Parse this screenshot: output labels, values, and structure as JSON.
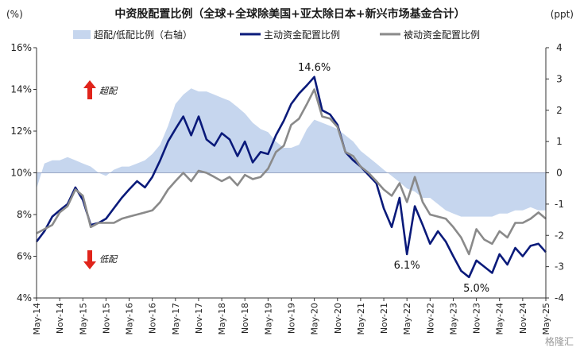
{
  "chart_data": {
    "type": "line",
    "title": "中资股配置比例（全球+全球除美国+亚太除日本+新兴市场基金合计）",
    "left_unit": "(%)",
    "right_unit": "(ppt)",
    "y_left": {
      "min": 4,
      "max": 16,
      "ticks": [
        "4%",
        "6%",
        "8%",
        "10%",
        "12%",
        "14%",
        "16%"
      ]
    },
    "y_right": {
      "min": -4,
      "max": 4,
      "ticks": [
        "-4",
        "-3",
        "-2",
        "-1",
        "0",
        "1",
        "2",
        "3",
        "4"
      ]
    },
    "x_ticks": [
      "May-14",
      "Nov-14",
      "May-15",
      "Nov-15",
      "May-16",
      "Nov-16",
      "May-17",
      "Nov-17",
      "May-18",
      "Nov-18",
      "May-19",
      "Nov-19",
      "May-20",
      "Nov-20",
      "May-21",
      "Nov-21",
      "May-22",
      "Nov-22",
      "May-23",
      "Nov-23",
      "May-24",
      "Nov-24",
      "May-25"
    ],
    "x_range": [
      2014.33,
      2025.33
    ],
    "legend": {
      "position": "top"
    },
    "series": [
      {
        "name": "超配/低配比例（右轴）",
        "type": "area",
        "axis": "right",
        "color": "#c6d6ee",
        "x": [
          2014.33,
          2014.5,
          2014.67,
          2014.83,
          2015.0,
          2015.17,
          2015.33,
          2015.5,
          2015.67,
          2015.83,
          2016.0,
          2016.17,
          2016.33,
          2016.5,
          2016.67,
          2016.83,
          2017.0,
          2017.17,
          2017.33,
          2017.5,
          2017.67,
          2017.83,
          2018.0,
          2018.17,
          2018.33,
          2018.5,
          2018.67,
          2018.83,
          2019.0,
          2019.17,
          2019.33,
          2019.5,
          2019.67,
          2019.83,
          2020.0,
          2020.17,
          2020.33,
          2020.5,
          2020.67,
          2020.83,
          2021.0,
          2021.17,
          2021.33,
          2021.5,
          2021.67,
          2021.83,
          2022.0,
          2022.17,
          2022.33,
          2022.5,
          2022.67,
          2022.83,
          2023.0,
          2023.17,
          2023.33,
          2023.5,
          2023.67,
          2023.83,
          2024.0,
          2024.17,
          2024.33,
          2024.5,
          2024.67,
          2024.83,
          2025.0,
          2025.17,
          2025.33
        ],
        "values": [
          -0.5,
          0.3,
          0.4,
          0.4,
          0.5,
          0.4,
          0.3,
          0.2,
          0.0,
          -0.1,
          0.1,
          0.2,
          0.2,
          0.3,
          0.4,
          0.6,
          0.9,
          1.5,
          2.2,
          2.5,
          2.7,
          2.6,
          2.6,
          2.5,
          2.4,
          2.3,
          2.1,
          1.9,
          1.6,
          1.4,
          1.3,
          1.0,
          0.8,
          0.8,
          0.9,
          1.4,
          1.7,
          1.6,
          1.5,
          1.4,
          1.2,
          1.0,
          0.7,
          0.5,
          0.3,
          0.1,
          -0.1,
          -0.3,
          -0.5,
          -0.6,
          -0.8,
          -0.8,
          -1.0,
          -1.2,
          -1.3,
          -1.4,
          -1.4,
          -1.4,
          -1.4,
          -1.4,
          -1.3,
          -1.3,
          -1.2,
          -1.2,
          -1.1,
          -1.2,
          -1.2
        ]
      },
      {
        "name": "主动资金配置比例",
        "type": "line",
        "axis": "left",
        "color": "#0a1a7a",
        "x": [
          2014.33,
          2014.5,
          2014.67,
          2014.83,
          2015.0,
          2015.17,
          2015.33,
          2015.5,
          2015.67,
          2015.83,
          2016.0,
          2016.17,
          2016.33,
          2016.5,
          2016.67,
          2016.83,
          2017.0,
          2017.17,
          2017.33,
          2017.5,
          2017.67,
          2017.83,
          2018.0,
          2018.17,
          2018.33,
          2018.5,
          2018.67,
          2018.83,
          2019.0,
          2019.17,
          2019.33,
          2019.5,
          2019.67,
          2019.83,
          2020.0,
          2020.17,
          2020.33,
          2020.5,
          2020.67,
          2020.83,
          2021.0,
          2021.17,
          2021.33,
          2021.5,
          2021.67,
          2021.83,
          2022.0,
          2022.17,
          2022.33,
          2022.5,
          2022.67,
          2022.83,
          2023.0,
          2023.17,
          2023.33,
          2023.5,
          2023.67,
          2023.83,
          2024.0,
          2024.17,
          2024.33,
          2024.5,
          2024.67,
          2024.83,
          2025.0,
          2025.17,
          2025.33
        ],
        "values": [
          6.7,
          7.2,
          7.9,
          8.2,
          8.5,
          9.3,
          8.7,
          7.5,
          7.6,
          7.8,
          8.3,
          8.8,
          9.2,
          9.6,
          9.3,
          9.8,
          10.6,
          11.5,
          12.1,
          12.7,
          11.8,
          12.7,
          11.6,
          11.3,
          11.9,
          11.6,
          10.8,
          11.5,
          10.5,
          11.0,
          10.9,
          11.8,
          12.5,
          13.3,
          13.8,
          14.2,
          14.6,
          13.0,
          12.8,
          12.3,
          11.0,
          10.6,
          10.3,
          9.9,
          9.5,
          8.3,
          7.4,
          8.8,
          6.1,
          8.4,
          7.5,
          6.6,
          7.2,
          6.7,
          6.0,
          5.3,
          5.0,
          5.8,
          5.5,
          5.2,
          6.1,
          5.6,
          6.4,
          6.0,
          6.5,
          6.6,
          6.2
        ]
      },
      {
        "name": "被动资金配置比例",
        "type": "line",
        "axis": "left",
        "color": "#8a8a8a",
        "x": [
          2014.33,
          2014.5,
          2014.67,
          2014.83,
          2015.0,
          2015.17,
          2015.33,
          2015.5,
          2015.67,
          2015.83,
          2016.0,
          2016.17,
          2016.33,
          2016.5,
          2016.67,
          2016.83,
          2017.0,
          2017.17,
          2017.33,
          2017.5,
          2017.67,
          2017.83,
          2018.0,
          2018.17,
          2018.33,
          2018.5,
          2018.67,
          2018.83,
          2019.0,
          2019.17,
          2019.33,
          2019.5,
          2019.67,
          2019.83,
          2020.0,
          2020.17,
          2020.33,
          2020.5,
          2020.67,
          2020.83,
          2021.0,
          2021.17,
          2021.33,
          2021.5,
          2021.67,
          2021.83,
          2022.0,
          2022.17,
          2022.33,
          2022.5,
          2022.67,
          2022.83,
          2023.0,
          2023.17,
          2023.33,
          2023.5,
          2023.67,
          2023.83,
          2024.0,
          2024.17,
          2024.33,
          2024.5,
          2024.67,
          2024.83,
          2025.0,
          2025.17,
          2025.33
        ],
        "values": [
          7.1,
          7.3,
          7.5,
          8.1,
          8.4,
          9.2,
          8.9,
          7.4,
          7.6,
          7.6,
          7.6,
          7.8,
          7.9,
          8.0,
          8.1,
          8.2,
          8.6,
          9.2,
          9.6,
          10.0,
          9.6,
          10.1,
          10.0,
          9.8,
          9.6,
          9.8,
          9.4,
          9.9,
          9.7,
          9.8,
          10.2,
          11.0,
          11.3,
          12.3,
          12.6,
          13.3,
          14.0,
          12.7,
          12.6,
          12.2,
          11.0,
          10.8,
          10.3,
          10.0,
          9.6,
          9.2,
          8.9,
          9.5,
          8.6,
          9.8,
          8.6,
          8.0,
          7.9,
          7.8,
          7.4,
          6.9,
          6.1,
          7.3,
          6.8,
          6.6,
          7.2,
          6.9,
          7.6,
          7.6,
          7.8,
          8.1,
          7.8
        ]
      }
    ],
    "annotations": [
      {
        "text": "14.6%",
        "x": 2020.33,
        "y": 14.6,
        "axis": "left",
        "placement": "above"
      },
      {
        "text": "6.1%",
        "x": 2022.33,
        "y": 6.1,
        "axis": "left",
        "placement": "below"
      },
      {
        "text": "5.0%",
        "x": 2023.83,
        "y": 5.0,
        "axis": "left",
        "placement": "below"
      }
    ],
    "notes": [
      {
        "text": "超配",
        "arrow": "up",
        "color": "#e0241b"
      },
      {
        "text": "低配",
        "arrow": "down",
        "color": "#e0241b"
      }
    ],
    "watermark": "格隆汇"
  }
}
